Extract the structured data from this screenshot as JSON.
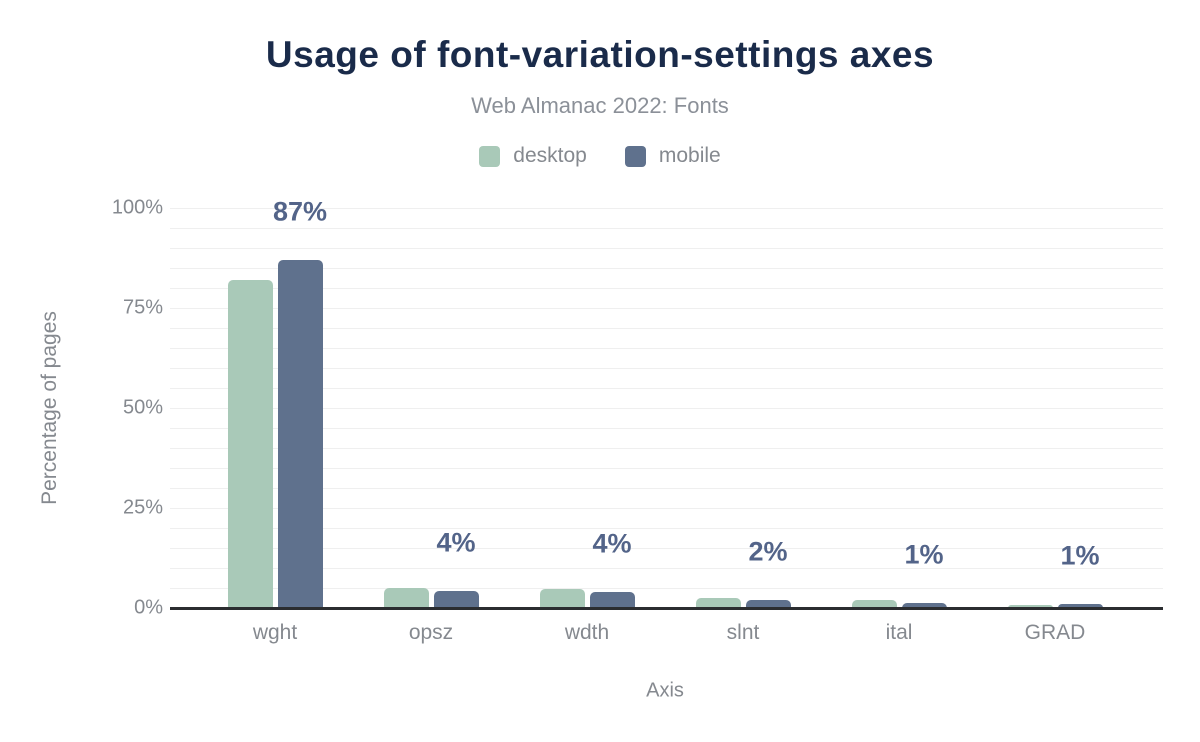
{
  "colors": {
    "background": "#ffffff",
    "title_text": "#1a2b4a",
    "subtitle_text": "#8b9098",
    "axis_text": "#85898f",
    "value_label": "#536489",
    "grid_line": "#efefef",
    "axis_line": "#2b2d30"
  },
  "chart_data": {
    "type": "bar",
    "title": "Usage of font-variation-settings axes",
    "subtitle": "Web Almanac 2022: Fonts",
    "xlabel": "Axis",
    "ylabel": "Percentage of pages",
    "categories": [
      "wght",
      "opsz",
      "wdth",
      "slnt",
      "ital",
      "GRAD"
    ],
    "series": [
      {
        "name": "desktop",
        "color": "#a9c9b8",
        "values": [
          82,
          5,
          4.8,
          2.6,
          2.1,
          0.7
        ]
      },
      {
        "name": "mobile",
        "color": "#5f718d",
        "values": [
          87,
          4.2,
          3.9,
          2.1,
          1.2,
          1.0
        ]
      }
    ],
    "value_labels": [
      "87%",
      "4%",
      "4%",
      "2%",
      "1%",
      "1%"
    ],
    "y_ticks": [
      {
        "label": "100%",
        "value": 100
      },
      {
        "label": "75%",
        "value": 75
      },
      {
        "label": "50%",
        "value": 50
      },
      {
        "label": "25%",
        "value": 25
      },
      {
        "label": "0%",
        "value": 0
      }
    ],
    "ylim": [
      0,
      100
    ],
    "grid": {
      "step": 5,
      "max": 100,
      "visible": true
    },
    "legend_position": "top"
  }
}
